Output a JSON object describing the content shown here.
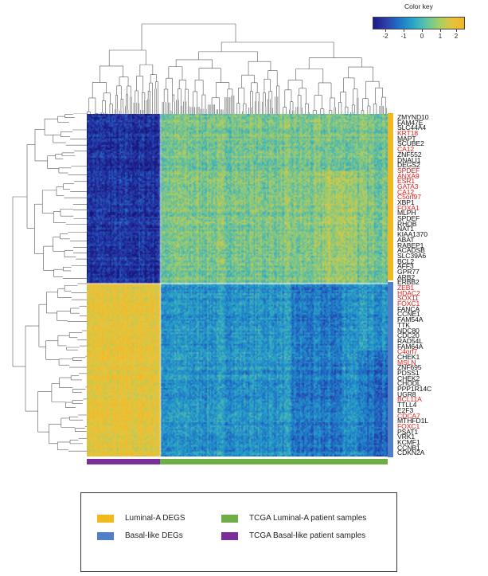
{
  "color_key": {
    "title": "Color key",
    "ticks": [
      "-2",
      "-1",
      "0",
      "1",
      "2"
    ]
  },
  "colors": {
    "luminal_degs": "#f2b81f",
    "basal_degs": "#4f7fc4",
    "tcga_luminal": "#6fad47",
    "tcga_basal": "#7a2f98",
    "gene_red": "#e0201b",
    "gene_black": "#111111"
  },
  "genes": [
    {
      "name": "ZMYND10",
      "color": "black"
    },
    {
      "name": "FAM47E",
      "color": "black"
    },
    {
      "name": "SLC44A4",
      "color": "black"
    },
    {
      "name": "KRT18",
      "color": "red"
    },
    {
      "name": "MAPT",
      "color": "black"
    },
    {
      "name": "SCUBE2",
      "color": "black"
    },
    {
      "name": "CA12",
      "color": "red"
    },
    {
      "name": "ZNF552",
      "color": "black"
    },
    {
      "name": "DNALI1",
      "color": "black"
    },
    {
      "name": "DEGS2",
      "color": "black"
    },
    {
      "name": "SPDEF",
      "color": "red"
    },
    {
      "name": "ANXA9",
      "color": "red"
    },
    {
      "name": "ESR1",
      "color": "red"
    },
    {
      "name": "GATA3",
      "color": "red"
    },
    {
      "name": "CA12",
      "color": "red"
    },
    {
      "name": "C5orf97",
      "color": "red"
    },
    {
      "name": "XBP1",
      "color": "black"
    },
    {
      "name": "FOXA1",
      "color": "red"
    },
    {
      "name": "MLPH",
      "color": "black"
    },
    {
      "name": "SPDEF",
      "color": "black"
    },
    {
      "name": "RHOB",
      "color": "black"
    },
    {
      "name": "NAT1",
      "color": "black"
    },
    {
      "name": "KIAA1370",
      "color": "black"
    },
    {
      "name": "ABAT",
      "color": "black"
    },
    {
      "name": "RABEP1",
      "color": "black"
    },
    {
      "name": "ACADSB",
      "color": "black"
    },
    {
      "name": "SLC39A6",
      "color": "black"
    },
    {
      "name": "BCL2",
      "color": "black"
    },
    {
      "name": "AFF3",
      "color": "black"
    },
    {
      "name": "GPR77",
      "color": "black"
    },
    {
      "name": "ARB2",
      "color": "black"
    },
    {
      "name": "ERBB2",
      "color": "black"
    },
    {
      "name": "ZEB1",
      "color": "red"
    },
    {
      "name": "HDAC2",
      "color": "red"
    },
    {
      "name": "SOX11",
      "color": "red"
    },
    {
      "name": "FOXC1",
      "color": "red"
    },
    {
      "name": "FANCA",
      "color": "black"
    },
    {
      "name": "CCNE1",
      "color": "black"
    },
    {
      "name": "FAM54A",
      "color": "black"
    },
    {
      "name": "TTK",
      "color": "black"
    },
    {
      "name": "NDC80",
      "color": "black"
    },
    {
      "name": "CDC20",
      "color": "black"
    },
    {
      "name": "RAD54L",
      "color": "black"
    },
    {
      "name": "FAM64A",
      "color": "black"
    },
    {
      "name": "C4orf7",
      "color": "red"
    },
    {
      "name": "CHEK1",
      "color": "black"
    },
    {
      "name": "MSLN",
      "color": "red"
    },
    {
      "name": "ZNF695",
      "color": "black"
    },
    {
      "name": "PDSS1",
      "color": "black"
    },
    {
      "name": "CHEK2",
      "color": "black"
    },
    {
      "name": "CHODL",
      "color": "black"
    },
    {
      "name": "PPP1R14C",
      "color": "black"
    },
    {
      "name": "UGR8",
      "color": "black"
    },
    {
      "name": "BCL11A",
      "color": "red"
    },
    {
      "name": "TTLL4",
      "color": "black"
    },
    {
      "name": "E2F3",
      "color": "black"
    },
    {
      "name": "CDCA7",
      "color": "red"
    },
    {
      "name": "MTHFD1L",
      "color": "black"
    },
    {
      "name": "FOXC1",
      "color": "red"
    },
    {
      "name": "PSAT1",
      "color": "black"
    },
    {
      "name": "VRK1",
      "color": "black"
    },
    {
      "name": "KCMF1",
      "color": "black"
    },
    {
      "name": "CCNB1",
      "color": "black"
    },
    {
      "name": "CDKN2A",
      "color": "black"
    }
  ],
  "legend": {
    "luminal_degs": "Luminal-A DEGS",
    "basal_degs": "Basal-like DEGs",
    "tcga_luminal": "TCGA Luminal-A patient samples",
    "tcga_basal": "TCGA Basal-like patient samples"
  }
}
